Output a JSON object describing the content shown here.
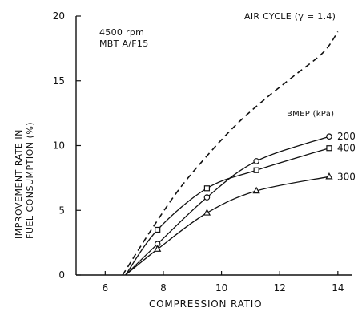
{
  "chart_data": {
    "type": "line",
    "xlabel": "COMPRESSION RATIO",
    "ylabel_line1": "IMPROVEMENT RATE IN",
    "ylabel_line2": "FUEL CONSUMPTION   (%)",
    "xlim": [
      5,
      14.5
    ],
    "ylim": [
      0,
      20
    ],
    "x_ticks": [
      6,
      8,
      10,
      12,
      14
    ],
    "y_ticks": [
      0,
      5,
      10,
      15,
      20
    ],
    "annotation_conditions": [
      "4500 rpm",
      "MBT A/F15"
    ],
    "legend_title": "BMEP (kPa)",
    "air_cycle": {
      "name": "AIR CYCLE (γ = 1.4)",
      "style": "dashed",
      "points": [
        [
          6.6,
          0
        ],
        [
          7.5,
          3.2
        ],
        [
          8.5,
          6.5
        ],
        [
          9.5,
          9.2
        ],
        [
          10.5,
          11.6
        ],
        [
          11.5,
          13.6
        ],
        [
          12.5,
          15.4
        ],
        [
          13.5,
          17.2
        ],
        [
          14,
          18.8
        ]
      ]
    },
    "series": [
      {
        "name": "200",
        "marker": "circle",
        "x": [
          6.7,
          7.8,
          9.5,
          11.2,
          13.7
        ],
        "y": [
          0,
          2.4,
          6.0,
          8.8,
          10.7
        ]
      },
      {
        "name": "400",
        "marker": "square",
        "x": [
          6.7,
          7.8,
          9.5,
          11.2,
          13.7
        ],
        "y": [
          0,
          3.5,
          6.7,
          8.1,
          9.8
        ]
      },
      {
        "name": "300",
        "marker": "triangle",
        "x": [
          6.7,
          7.8,
          9.5,
          11.2,
          13.7
        ],
        "y": [
          0,
          2.0,
          4.8,
          6.5,
          7.6
        ]
      }
    ]
  }
}
